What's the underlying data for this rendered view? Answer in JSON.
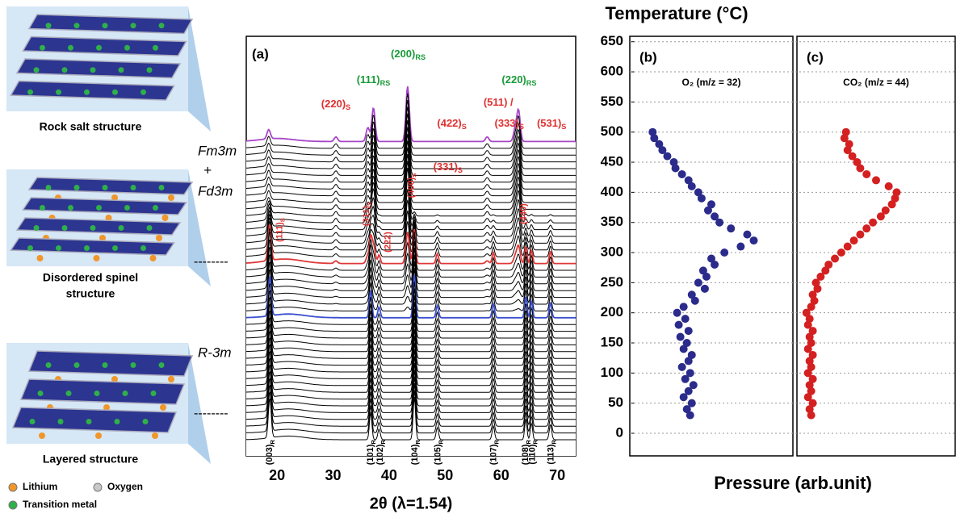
{
  "figure": {
    "structures": [
      {
        "lines": [
          "Rock salt structure"
        ]
      },
      {
        "lines": [
          "Disordered spinel",
          "structure"
        ]
      },
      {
        "lines": [
          "Layered structure"
        ]
      }
    ],
    "legend": [
      "Lithium",
      "Oxygen",
      "Transition metal"
    ],
    "phase_labels": [
      "Fm3m",
      "+",
      "Fd3m",
      "R-3m"
    ],
    "dividers": [
      "--------",
      "--------"
    ]
  },
  "chart_data": [
    {
      "type": "waterfall",
      "label": "(a)",
      "xlabel": "2θ (λ=1.54)",
      "xlim": [
        14.5,
        73.3
      ],
      "xticks": [
        20,
        30,
        40,
        50,
        60,
        70
      ],
      "scans": 45,
      "phases": [
        {
          "scans": [
            24,
            34
          ],
          "fade": "out",
          "peaks": [
            [
              18.7,
              1.3,
              0.25
            ],
            [
              22,
              0.12,
              3
            ],
            [
              36.7,
              0.9,
              0.22
            ],
            [
              38.2,
              0.35,
              0.22
            ],
            [
              44.5,
              1.4,
              0.22
            ],
            [
              48.6,
              0.4,
              0.22
            ],
            [
              58.6,
              0.45,
              0.22
            ],
            [
              64.4,
              0.7,
              0.2
            ],
            [
              65.4,
              0.55,
              0.2
            ],
            [
              68.8,
              0.5,
              0.22
            ]
          ]
        },
        {
          "scans": [
            18,
            32
          ],
          "fade": "in",
          "peaks": [
            [
              18.5,
              0.3,
              0.3
            ],
            [
              30.5,
              0.15,
              0.3
            ],
            [
              36.2,
              0.45,
              0.3
            ],
            [
              37.2,
              1.1,
              0.3
            ],
            [
              43.3,
              1.8,
              0.3
            ],
            [
              57.5,
              0.15,
              0.3
            ],
            [
              62.5,
              0.4,
              0.3
            ],
            [
              63.1,
              1.0,
              0.3
            ],
            [
              20,
              0.1,
              3
            ]
          ]
        }
      ],
      "highlight": [
        {
          "scan": 18,
          "color": "#3a4fd0"
        },
        {
          "scan": 26,
          "color": "#e03838"
        },
        {
          "scan": 44,
          "color": "#a845c8"
        }
      ],
      "annotations": [
        {
          "text": "(111)",
          "sub": "RS",
          "x": 37.2,
          "color": "#1a9a3a"
        },
        {
          "text": "(200)",
          "sub": "RS",
          "x": 43.4,
          "color": "#1a9a3a"
        },
        {
          "text": "(220)",
          "sub": "RS",
          "x": 63.2,
          "color": "#1a9a3a"
        },
        {
          "text": "(220)",
          "sub": "S",
          "x": 30.5,
          "color": "#e03030"
        },
        {
          "text": "(511) /",
          "sub": "",
          "x": 59.5,
          "color": "#e03030"
        },
        {
          "text": "(333)",
          "sub": "S",
          "x": 60,
          "color": "#e03030"
        },
        {
          "text": "(422)",
          "sub": "S",
          "x": 53.5,
          "color": "#e03030"
        },
        {
          "text": "(331)",
          "sub": "S",
          "x": 50.5,
          "color": "#e03030"
        },
        {
          "text": "(531)",
          "sub": "S",
          "x": 69,
          "color": "#e03030"
        },
        {
          "text": "(111)",
          "sub": "S",
          "x": 20.5,
          "color": "#e03030",
          "rotated": true
        },
        {
          "text": "(311)",
          "sub": "S",
          "x": 36,
          "color": "#e03030",
          "rotated": true
        },
        {
          "text": "(222)",
          "sub": "",
          "x": 39.8,
          "color": "#e03030",
          "rotated": true
        },
        {
          "text": "(400)",
          "sub": "S",
          "x": 44,
          "color": "#e03030",
          "rotated": true
        },
        {
          "text": "(440)",
          "sub": "",
          "x": 64,
          "color": "#e03030",
          "rotated": true
        }
      ],
      "reflections": [
        {
          "text": "(003)",
          "sub": "R",
          "x": 18.7
        },
        {
          "text": "(101)",
          "sub": "R",
          "x": 36.7
        },
        {
          "text": "(102)",
          "sub": "R",
          "x": 38.4
        },
        {
          "text": "(104)",
          "sub": "R",
          "x": 44.6
        },
        {
          "text": "(105)",
          "sub": "R",
          "x": 48.7
        },
        {
          "text": "(107)",
          "sub": "R",
          "x": 58.7
        },
        {
          "text": "(108)",
          "sub": "R",
          "x": 64.4
        },
        {
          "text": "(110)",
          "sub": "R",
          "x": 65.6
        },
        {
          "text": "(113)",
          "sub": "R",
          "x": 68.9
        }
      ]
    },
    {
      "type": "scatter",
      "label": "(b)",
      "title": "Temperature (°C)",
      "xlabel": "Pressure (arb.unit)",
      "series_label": "O₂ (m/z = 32)",
      "xlim": [
        0,
        1
      ],
      "ylim": [
        -37.5,
        659
      ],
      "yticks": [
        0,
        50,
        100,
        150,
        200,
        250,
        300,
        350,
        400,
        450,
        500,
        550,
        600,
        650
      ],
      "grid": true,
      "color": "#2b2b8c",
      "x": [
        0.37,
        0.35,
        0.38,
        0.33,
        0.36,
        0.39,
        0.34,
        0.37,
        0.32,
        0.36,
        0.38,
        0.33,
        0.35,
        0.31,
        0.36,
        0.3,
        0.34,
        0.29,
        0.33,
        0.4,
        0.38,
        0.46,
        0.42,
        0.47,
        0.45,
        0.52,
        0.5,
        0.58,
        0.68,
        0.76,
        0.72,
        0.62,
        0.55,
        0.52,
        0.48,
        0.5,
        0.44,
        0.42,
        0.38,
        0.36,
        0.32,
        0.28,
        0.27,
        0.23,
        0.2,
        0.18,
        0.15,
        0.14
      ],
      "y": [
        30,
        40,
        50,
        60,
        70,
        80,
        90,
        100,
        110,
        120,
        130,
        140,
        150,
        160,
        170,
        180,
        190,
        200,
        210,
        220,
        230,
        240,
        250,
        260,
        270,
        280,
        290,
        300,
        310,
        320,
        330,
        340,
        350,
        360,
        370,
        380,
        390,
        400,
        410,
        420,
        430,
        440,
        450,
        460,
        470,
        480,
        490,
        500
      ]
    },
    {
      "type": "scatter",
      "label": "(c)",
      "series_label": "CO₂ (m/z = 44)",
      "xlim": [
        0,
        1
      ],
      "ylim": [
        -37.5,
        659
      ],
      "color": "#d42020",
      "x": [
        0.09,
        0.08,
        0.1,
        0.07,
        0.09,
        0.08,
        0.1,
        0.07,
        0.09,
        0.08,
        0.1,
        0.07,
        0.09,
        0.08,
        0.1,
        0.07,
        0.08,
        0.06,
        0.09,
        0.11,
        0.1,
        0.13,
        0.12,
        0.15,
        0.18,
        0.2,
        0.24,
        0.28,
        0.32,
        0.36,
        0.4,
        0.44,
        0.48,
        0.53,
        0.56,
        0.6,
        0.62,
        0.63,
        0.58,
        0.5,
        0.44,
        0.4,
        0.38,
        0.35,
        0.32,
        0.33,
        0.3,
        0.31
      ],
      "y": [
        30,
        40,
        50,
        60,
        70,
        80,
        90,
        100,
        110,
        120,
        130,
        140,
        150,
        160,
        170,
        180,
        190,
        200,
        210,
        220,
        230,
        240,
        250,
        260,
        270,
        280,
        290,
        300,
        310,
        320,
        330,
        340,
        350,
        360,
        370,
        380,
        390,
        400,
        410,
        420,
        430,
        440,
        450,
        460,
        470,
        480,
        490,
        500
      ]
    }
  ]
}
